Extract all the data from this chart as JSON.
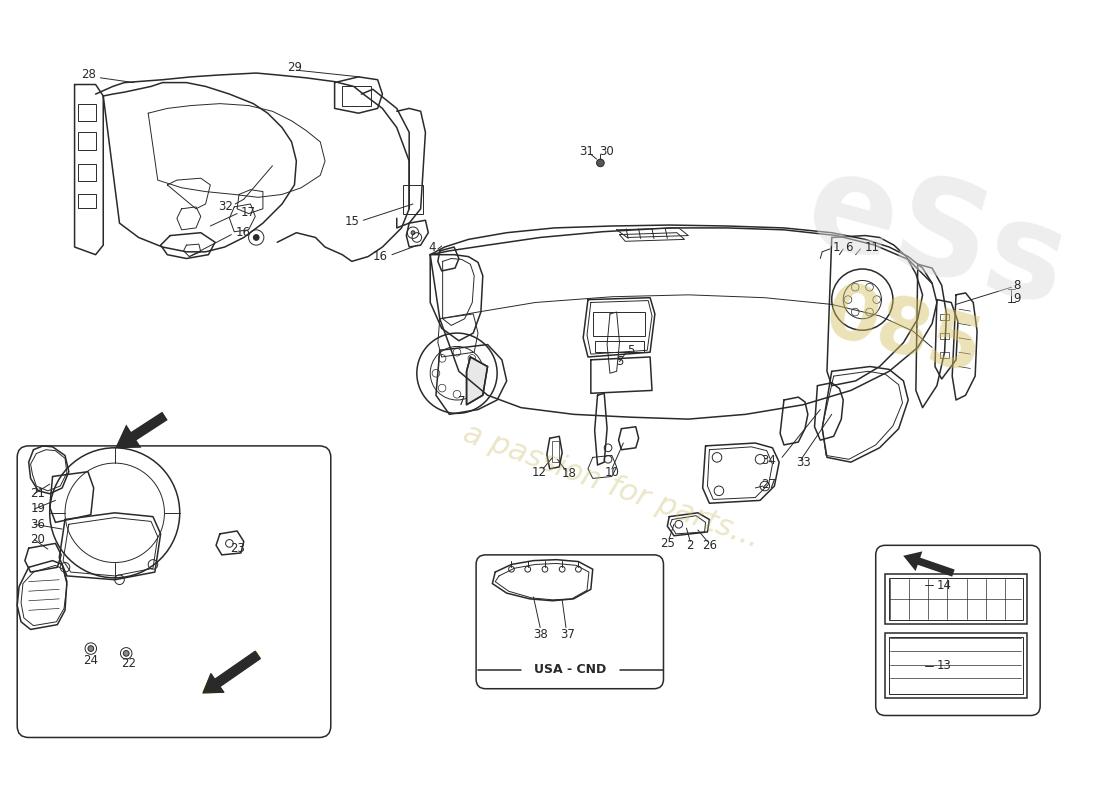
{
  "bg_color": "#ffffff",
  "line_color": "#2a2a2a",
  "watermark_text": "a passion for parts...",
  "usa_cnd_label": "USA - CND",
  "wm_color": "#c8b860",
  "wm_alpha": 0.35
}
